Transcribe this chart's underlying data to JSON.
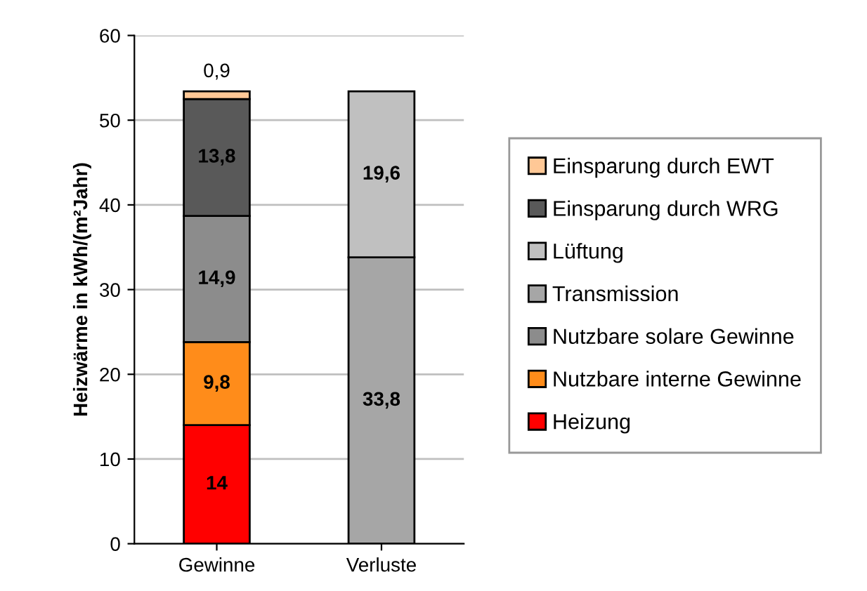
{
  "chart_data": {
    "type": "bar",
    "stacked": true,
    "ylabel": "Heizwärme in kWh/(m²Jahr)",
    "categories": [
      "Gewinne",
      "Verluste"
    ],
    "series": [
      {
        "name": "Heizung",
        "color": "#ff0000",
        "values": [
          14,
          null
        ],
        "value_labels": [
          "14",
          null
        ]
      },
      {
        "name": "Nutzbare interne Gewinne",
        "color": "#ff8c1a",
        "values": [
          9.8,
          null
        ],
        "value_labels": [
          "9,8",
          null
        ]
      },
      {
        "name": "Nutzbare solare Gewinne",
        "color": "#8c8c8c",
        "values": [
          14.9,
          null
        ],
        "value_labels": [
          "14,9",
          null
        ]
      },
      {
        "name": "Transmission",
        "color": "#a6a6a6",
        "values": [
          null,
          33.8
        ],
        "value_labels": [
          null,
          "33,8"
        ]
      },
      {
        "name": "Lüftung",
        "color": "#c0c0c0",
        "values": [
          null,
          19.6
        ],
        "value_labels": [
          null,
          "19,6"
        ]
      },
      {
        "name": "Einsparung durch WRG",
        "color": "#595959",
        "values": [
          13.8,
          null
        ],
        "value_labels": [
          "13,8",
          null
        ]
      },
      {
        "name": "Einsparung durch EWT",
        "color": "#ffc896",
        "values": [
          0.9,
          null
        ],
        "value_labels": [
          "0,9",
          null
        ]
      }
    ],
    "ylim": [
      0,
      60
    ],
    "yticks": [
      0,
      10,
      20,
      30,
      40,
      50,
      60
    ],
    "grid": "y",
    "legend": "right"
  }
}
